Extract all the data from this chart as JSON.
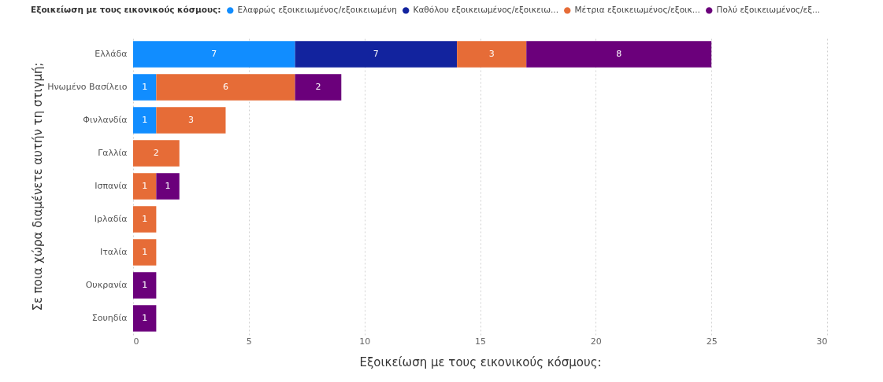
{
  "chart_data": {
    "type": "bar",
    "orientation": "horizontal",
    "stacked": true,
    "data_labels": true,
    "grid": "x",
    "legend": "top",
    "legend_title": "Εξοικείωση με τους εικονικούς κόσμους:",
    "xlabel": "Εξοικείωση με τους εικονικούς κόσμους:",
    "ylabel": "Σε ποια χώρα διαμένετε αυτήν τη στιγμή;",
    "categories": [
      "Ελλάδα",
      "Ηνωμένο Βασίλειο",
      "Φινλανδία",
      "Γαλλία",
      "Ισπανία",
      "Ιρλαδία",
      "Ιταλία",
      "Ουκρανία",
      "Σουηδία"
    ],
    "xlim": [
      0,
      30
    ],
    "xticks": [
      0,
      5,
      10,
      15,
      20,
      25,
      30
    ],
    "series": [
      {
        "name": "Ελαφρώς εξοικειωμένος/εξοικειωμένη",
        "color": "#118dff",
        "values": [
          7,
          1,
          1,
          null,
          null,
          null,
          null,
          null,
          null
        ]
      },
      {
        "name": "Καθόλου εξοικειωμένος/εξοικειω...",
        "color": "#12239e",
        "values": [
          7,
          null,
          null,
          null,
          null,
          null,
          null,
          null,
          null
        ]
      },
      {
        "name": "Μέτρια εξοικειωμένος/εξοικ...",
        "color": "#e66c37",
        "values": [
          3,
          6,
          3,
          2,
          1,
          1,
          1,
          null,
          null
        ]
      },
      {
        "name": "Πολύ εξοικειωμένος/εξ...",
        "color": "#6b007b",
        "values": [
          8,
          2,
          null,
          null,
          1,
          null,
          null,
          1,
          1
        ]
      }
    ]
  }
}
